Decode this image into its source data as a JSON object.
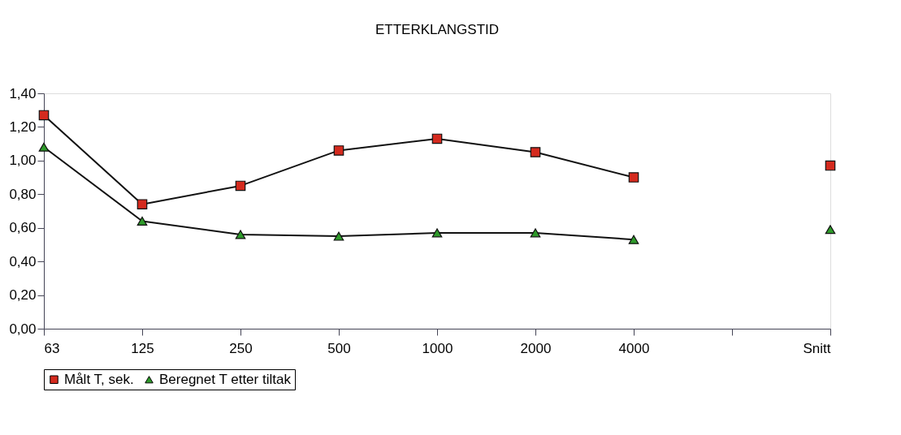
{
  "chart_data": {
    "type": "line",
    "title": "ETTERKLANGSTID",
    "categories": [
      "63",
      "125",
      "250",
      "500",
      "1000",
      "2000",
      "4000",
      null,
      "Snitt"
    ],
    "series": [
      {
        "name": "Målt T, sek.",
        "color": "#d42a1e",
        "marker": "square",
        "values": [
          1.27,
          0.74,
          0.85,
          1.06,
          1.13,
          1.05,
          0.9,
          null,
          0.97
        ]
      },
      {
        "name": "Beregnet T etter tiltak",
        "color": "#2e9a2a",
        "marker": "triangle",
        "values": [
          1.08,
          0.64,
          0.56,
          0.55,
          0.57,
          0.57,
          0.53,
          null,
          0.59
        ]
      }
    ],
    "ylim": [
      0,
      1.4
    ],
    "yticks": [
      {
        "value": 0,
        "label": "0,00"
      },
      {
        "value": 0.2,
        "label": "0,20"
      },
      {
        "value": 0.4,
        "label": "0,40"
      },
      {
        "value": 0.6,
        "label": "0,60"
      },
      {
        "value": 0.8,
        "label": "0,80"
      },
      {
        "value": 1.0,
        "label": "1,00"
      },
      {
        "value": 1.2,
        "label": "1,20"
      },
      {
        "value": 1.4,
        "label": "1,40"
      }
    ],
    "grid": false,
    "legend": "bottom",
    "line_style": "solid"
  }
}
